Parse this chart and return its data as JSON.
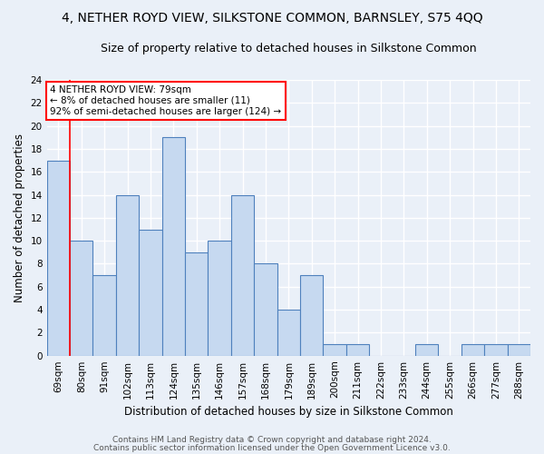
{
  "title": "4, NETHER ROYD VIEW, SILKSTONE COMMON, BARNSLEY, S75 4QQ",
  "subtitle": "Size of property relative to detached houses in Silkstone Common",
  "xlabel": "Distribution of detached houses by size in Silkstone Common",
  "ylabel": "Number of detached properties",
  "footer1": "Contains HM Land Registry data © Crown copyright and database right 2024.",
  "footer2": "Contains public sector information licensed under the Open Government Licence v3.0.",
  "categories": [
    "69sqm",
    "80sqm",
    "91sqm",
    "102sqm",
    "113sqm",
    "124sqm",
    "135sqm",
    "146sqm",
    "157sqm",
    "168sqm",
    "179sqm",
    "189sqm",
    "200sqm",
    "211sqm",
    "222sqm",
    "233sqm",
    "244sqm",
    "255sqm",
    "266sqm",
    "277sqm",
    "288sqm"
  ],
  "values": [
    17,
    10,
    7,
    14,
    11,
    19,
    9,
    10,
    14,
    8,
    4,
    7,
    1,
    1,
    0,
    0,
    1,
    0,
    1,
    1,
    1
  ],
  "bar_color": "#c6d9f0",
  "bar_edge_color": "#4f81bd",
  "annotation_text_line1": "4 NETHER ROYD VIEW: 79sqm",
  "annotation_text_line2": "← 8% of detached houses are smaller (11)",
  "annotation_text_line3": "92% of semi-detached houses are larger (124) →",
  "annotation_box_color": "white",
  "annotation_box_edge_color": "red",
  "vline_color": "red",
  "ylim": [
    0,
    24
  ],
  "yticks": [
    0,
    2,
    4,
    6,
    8,
    10,
    12,
    14,
    16,
    18,
    20,
    22,
    24
  ],
  "background_color": "#eaf0f8",
  "grid_color": "white",
  "title_fontsize": 10,
  "subtitle_fontsize": 9,
  "tick_fontsize": 7.5,
  "label_fontsize": 8.5,
  "footer_fontsize": 6.5
}
